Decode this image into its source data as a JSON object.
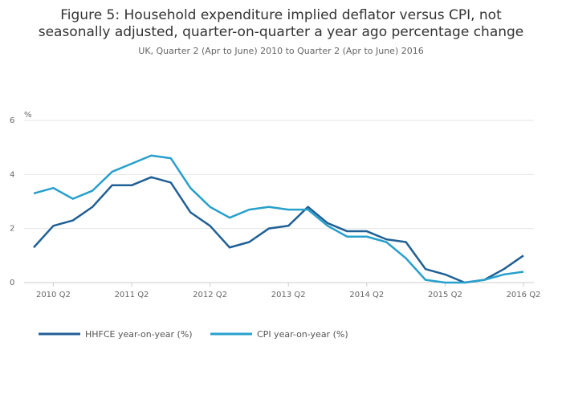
{
  "chart_data": {
    "type": "line",
    "title": [
      "Figure 5: Household expenditure implied deflator versus CPI, not",
      "seasonally adjusted, quarter-on-quarter a year ago percentage change"
    ],
    "subtitle": "UK, Quarter 2 (Apr to June) 2010 to Quarter 2 (Apr to June) 2016",
    "y_label": "%",
    "categories": [
      null,
      "2010 Q2",
      null,
      null,
      null,
      "2011 Q2",
      null,
      null,
      null,
      "2012 Q2",
      null,
      null,
      null,
      "2013 Q2",
      null,
      null,
      null,
      "2014 Q2",
      null,
      null,
      null,
      "2015 Q2",
      null,
      null,
      null,
      "2016 Q2"
    ],
    "series": [
      {
        "name": "HHFCE year-on-year (%)",
        "color": "#206095",
        "values": [
          1.3,
          2.1,
          2.3,
          2.8,
          3.6,
          3.6,
          3.9,
          3.7,
          2.6,
          2.1,
          1.3,
          1.5,
          2.0,
          2.1,
          2.8,
          2.2,
          1.9,
          1.9,
          1.6,
          1.5,
          0.5,
          0.3,
          0.0,
          0.1,
          0.5,
          1.0
        ]
      },
      {
        "name": "CPI year-on-year (%)",
        "color": "#27a0cc",
        "values": [
          3.3,
          3.5,
          3.1,
          3.4,
          4.1,
          4.4,
          4.7,
          4.6,
          3.5,
          2.8,
          2.4,
          2.7,
          2.8,
          2.7,
          2.7,
          2.1,
          1.7,
          1.7,
          1.5,
          0.9,
          0.1,
          0.0,
          0.0,
          0.1,
          0.3,
          0.4
        ]
      }
    ],
    "ylim": [
      0,
      6
    ],
    "yticks": [
      0,
      2,
      4,
      6
    ],
    "grid": true,
    "legend": "bottom"
  }
}
